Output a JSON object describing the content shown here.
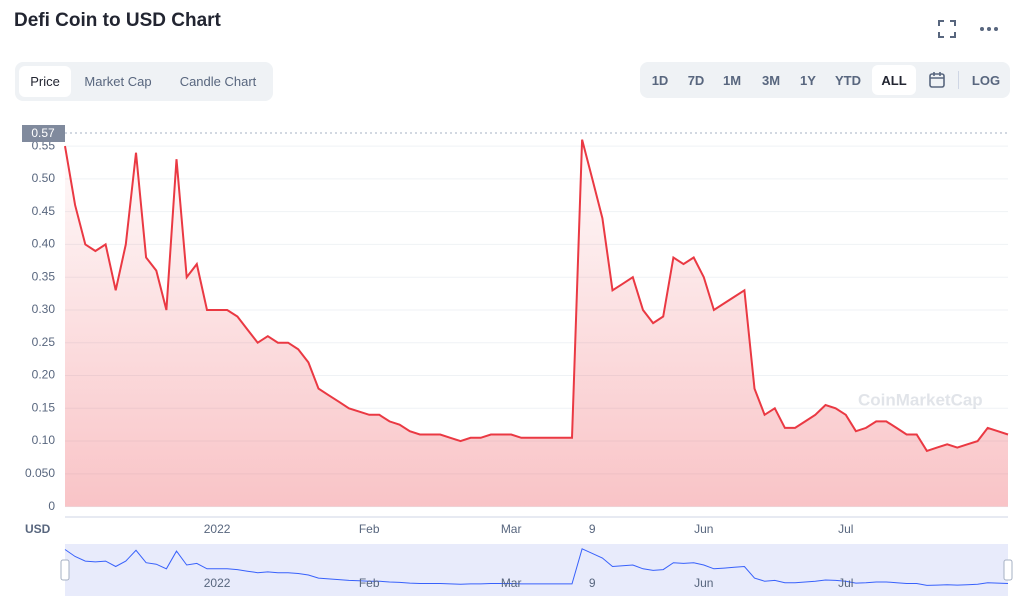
{
  "header": {
    "title": "Defi Coin to USD Chart"
  },
  "tabs": [
    "Price",
    "Market Cap",
    "Candle Chart"
  ],
  "ranges": [
    "1D",
    "7D",
    "1M",
    "3M",
    "1Y",
    "YTD",
    "ALL"
  ],
  "scale_toggle": "LOG",
  "chart_data": {
    "type": "line",
    "color": "#ea3943",
    "axis_unit": "USD",
    "watermark": "CoinMarketCap",
    "reference_line": 0.57,
    "categories": [
      null,
      null,
      null,
      null,
      null,
      null,
      null,
      null,
      null,
      null,
      null,
      null,
      null,
      null,
      null,
      "2022",
      null,
      null,
      null,
      null,
      null,
      null,
      null,
      null,
      null,
      null,
      null,
      null,
      null,
      null,
      "Feb",
      null,
      null,
      null,
      null,
      null,
      null,
      null,
      null,
      null,
      null,
      null,
      null,
      null,
      "Mar",
      null,
      null,
      null,
      null,
      null,
      null,
      null,
      "9",
      null,
      null,
      null,
      null,
      null,
      null,
      null,
      null,
      null,
      null,
      "Jun",
      null,
      null,
      null,
      null,
      null,
      null,
      null,
      null,
      null,
      null,
      null,
      null,
      null,
      "Jul",
      null,
      null,
      null,
      null,
      null,
      null,
      null,
      null,
      null,
      null,
      null,
      null,
      null,
      null,
      null,
      null
    ],
    "values": [
      0.55,
      0.46,
      0.4,
      0.39,
      0.4,
      0.33,
      0.4,
      0.54,
      0.38,
      0.36,
      0.3,
      0.53,
      0.35,
      0.37,
      0.3,
      0.3,
      0.3,
      0.29,
      0.27,
      0.25,
      0.26,
      0.25,
      0.25,
      0.24,
      0.22,
      0.18,
      0.17,
      0.16,
      0.15,
      0.145,
      0.14,
      0.14,
      0.13,
      0.125,
      0.115,
      0.11,
      0.11,
      0.11,
      0.105,
      0.1,
      0.105,
      0.105,
      0.11,
      0.11,
      0.11,
      0.105,
      0.105,
      0.105,
      0.105,
      0.105,
      0.105,
      0.56,
      0.5,
      0.44,
      0.33,
      0.34,
      0.35,
      0.3,
      0.28,
      0.29,
      0.38,
      0.37,
      0.38,
      0.35,
      0.3,
      0.31,
      0.32,
      0.33,
      0.18,
      0.14,
      0.15,
      0.12,
      0.12,
      0.13,
      0.14,
      0.155,
      0.15,
      0.14,
      0.115,
      0.12,
      0.13,
      0.13,
      0.12,
      0.11,
      0.11,
      0.085,
      0.09,
      0.095,
      0.09,
      0.095,
      0.1,
      0.12,
      0.115,
      0.11
    ],
    "ylim": [
      0,
      0.57
    ],
    "yticks": [
      0,
      {
        "value": 0.05,
        "label": "0.050"
      },
      {
        "value": 0.1,
        "label": "0.10"
      },
      0.15,
      {
        "value": 0.2,
        "label": "0.20"
      },
      0.25,
      {
        "value": 0.3,
        "label": "0.30"
      },
      0.35,
      {
        "value": 0.4,
        "label": "0.40"
      },
      0.45,
      {
        "value": 0.5,
        "label": "0.50"
      },
      0.55
    ],
    "grid": true
  }
}
